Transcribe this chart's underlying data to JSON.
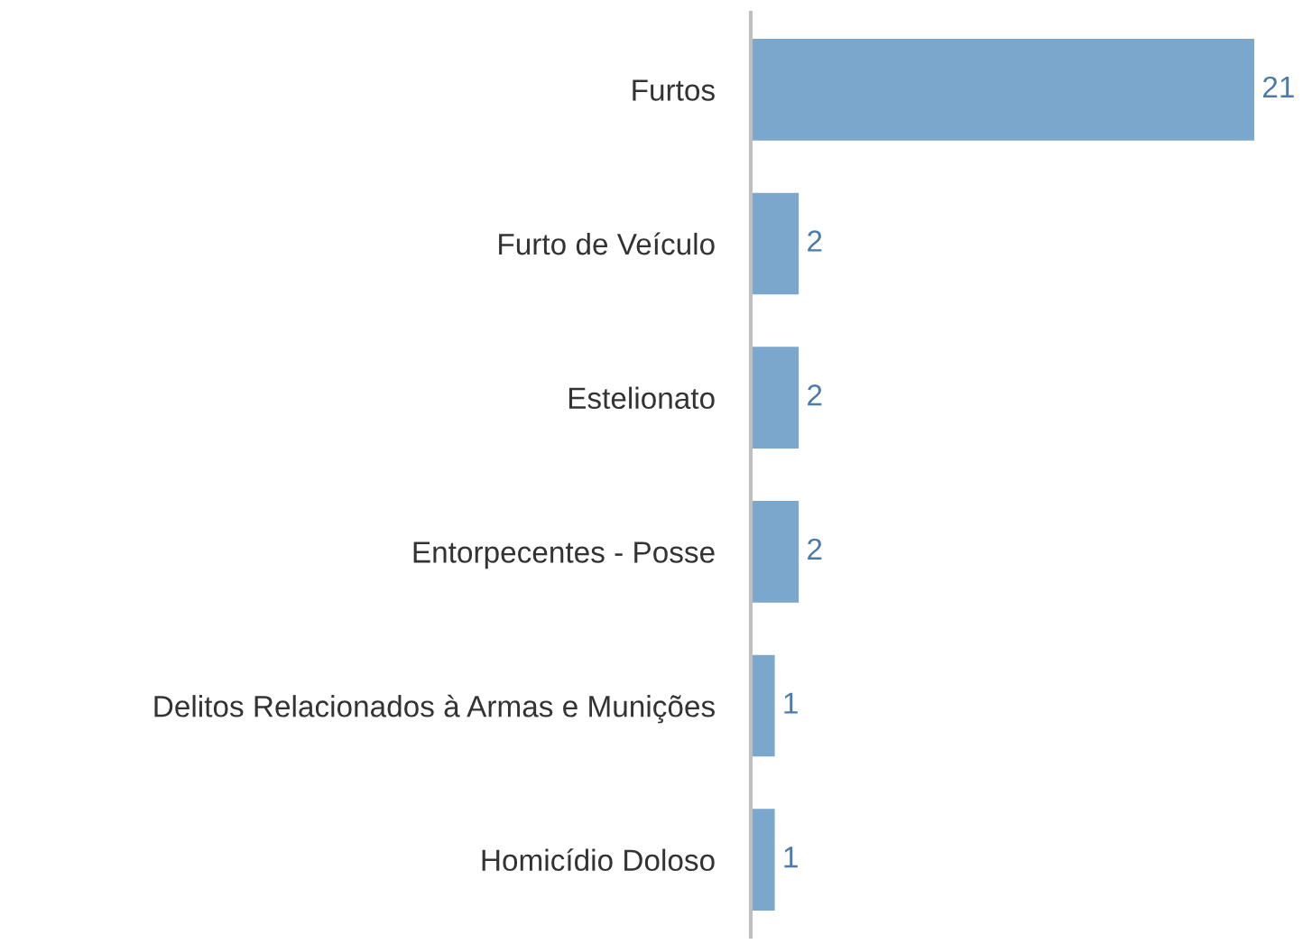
{
  "chart_data": {
    "type": "bar",
    "orientation": "horizontal",
    "categories": [
      "Furtos",
      "Furto de Veículo",
      "Estelionato",
      "Entorpecentes - Posse",
      "Delitos Relacionados à Armas e Munições",
      "Homicídio Doloso"
    ],
    "values": [
      21,
      2,
      2,
      2,
      1,
      1
    ],
    "color": "#7ba7cc",
    "data_labels": true,
    "grid": false,
    "legend": false
  }
}
